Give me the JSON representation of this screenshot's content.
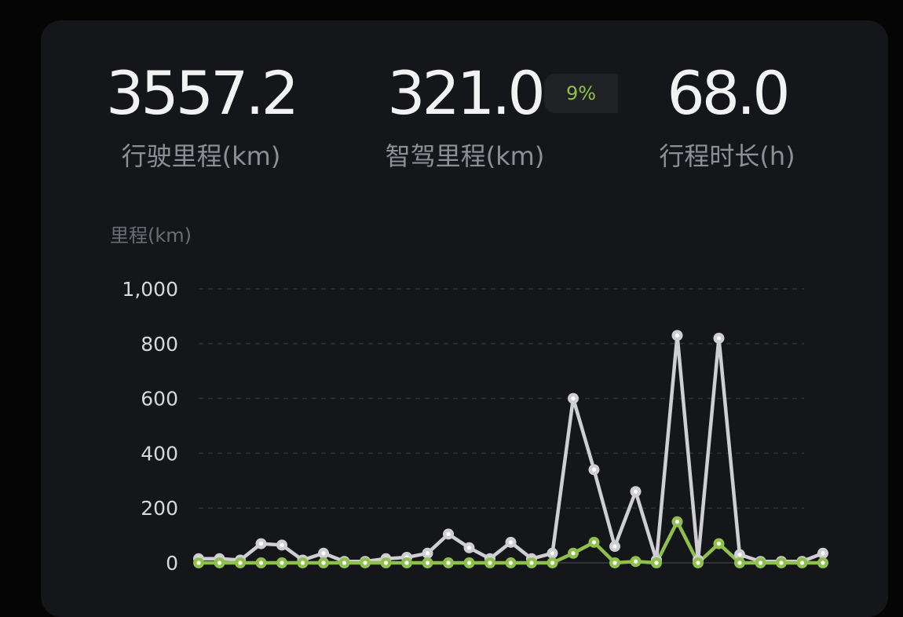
{
  "stats": [
    {
      "value": "3557.2",
      "label": "行驶里程(km)"
    },
    {
      "value": "321.0",
      "label": "智驾里程(km)",
      "badge": "9%"
    },
    {
      "value": "68.0",
      "label": "行程时长(h)"
    }
  ],
  "colors": {
    "card_background": "#15161a",
    "total_series": "#cfcfd3",
    "smart_series": "#8fc04c",
    "badge_text": "#8fc04c"
  },
  "chart_data": {
    "type": "line",
    "ylabel": "里程(km)",
    "ylim": [
      0,
      1000
    ],
    "yticks": [
      "0",
      "200",
      "400",
      "600",
      "800",
      "1,000"
    ],
    "ytick_values": [
      0,
      200,
      400,
      600,
      800,
      1000
    ],
    "grid": true,
    "x": [
      1,
      2,
      3,
      4,
      5,
      6,
      7,
      8,
      9,
      10,
      11,
      12,
      13,
      14,
      15,
      16,
      17,
      18,
      19,
      20,
      21,
      22,
      23,
      24,
      25,
      26,
      27,
      28,
      29,
      30,
      31
    ],
    "series": [
      {
        "key": "total",
        "values": [
          15,
          15,
          10,
          70,
          65,
          10,
          35,
          5,
          5,
          15,
          20,
          35,
          105,
          55,
          15,
          75,
          15,
          35,
          600,
          340,
          60,
          260,
          10,
          830,
          10,
          820,
          30,
          5,
          5,
          5,
          35
        ]
      },
      {
        "key": "smart",
        "values": [
          0,
          0,
          0,
          0,
          0,
          0,
          0,
          0,
          0,
          0,
          0,
          0,
          0,
          0,
          0,
          0,
          0,
          0,
          35,
          75,
          0,
          5,
          0,
          150,
          0,
          70,
          0,
          0,
          0,
          0,
          0
        ]
      }
    ]
  }
}
